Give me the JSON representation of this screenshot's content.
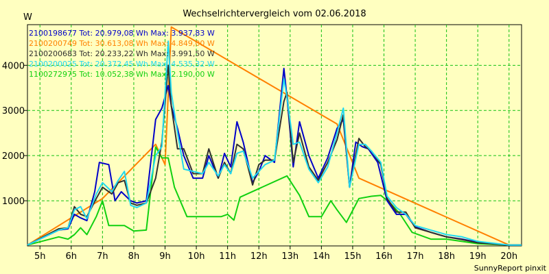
{
  "chart_data": {
    "type": "line",
    "title": "Wechselrichtervergleich vom 02.06.2018",
    "ylabel": "W",
    "xlabel": "",
    "ylim": [
      0,
      4900
    ],
    "xlim": [
      4.6,
      20.4
    ],
    "yticks": [
      1000,
      2000,
      3000,
      4000
    ],
    "xticks": [
      5,
      6,
      7,
      8,
      9,
      10,
      11,
      12,
      13,
      14,
      15,
      16,
      17,
      18,
      19,
      20
    ],
    "xtick_labels": [
      "5h",
      "6h",
      "7h",
      "8h",
      "9h",
      "10h",
      "11h",
      "12h",
      "13h",
      "14h",
      "15h",
      "16h",
      "17h",
      "18h",
      "19h",
      "20h"
    ],
    "grid": true,
    "legend_position": "top-left",
    "footer": "SunnyReport pinxit",
    "series": [
      {
        "name": "2100198677 Tot: 20.979,08 Wh Max: 3.937,83 W",
        "color": "#0000c8",
        "x": [
          4.6,
          5.6,
          5.9,
          6.1,
          6.3,
          6.5,
          6.75,
          6.9,
          7.2,
          7.4,
          7.6,
          7.9,
          8.1,
          8.4,
          8.7,
          8.9,
          9.1,
          9.2,
          9.4,
          9.6,
          9.9,
          10.2,
          10.4,
          10.7,
          10.9,
          11.1,
          11.3,
          11.5,
          11.8,
          12.0,
          12.2,
          12.5,
          12.8,
          12.9,
          13.1,
          13.3,
          13.6,
          13.9,
          14.2,
          14.5,
          14.7,
          14.9,
          15.1,
          15.3,
          15.5,
          15.8,
          16.1,
          16.4,
          16.7,
          17.0,
          17.5,
          18.0,
          18.5,
          19.0,
          20.0,
          20.4
        ],
        "y": [
          20,
          350,
          380,
          700,
          620,
          560,
          1200,
          1850,
          1800,
          1000,
          1200,
          1000,
          950,
          1000,
          2800,
          3050,
          3550,
          3100,
          2600,
          2000,
          1500,
          1500,
          2000,
          1500,
          2050,
          1750,
          2750,
          2300,
          1400,
          1650,
          2000,
          1850,
          3930,
          3300,
          1750,
          2750,
          2000,
          1500,
          1950,
          2600,
          2800,
          1300,
          2300,
          2200,
          2150,
          1850,
          1000,
          700,
          700,
          420,
          300,
          200,
          150,
          80,
          20,
          20
        ]
      },
      {
        "name": "2100200749 Tot: 30.613,08 Wh Max: 4.849,00 W",
        "color": "#ff8000",
        "x": [
          4.6,
          7.0,
          8.7,
          9.0,
          9.2,
          14.5,
          15.2,
          20.0,
          20.4
        ],
        "y": [
          20,
          1050,
          2250,
          1800,
          4849,
          2700,
          1500,
          20,
          20
        ]
      },
      {
        "name": "2100200683 Tot: 20.233,22 Wh Max: 3.991,50 W",
        "color": "#303030",
        "x": [
          4.6,
          5.6,
          5.9,
          6.1,
          6.3,
          6.5,
          6.8,
          7.0,
          7.3,
          7.5,
          7.7,
          7.9,
          8.1,
          8.4,
          8.7,
          8.9,
          9.1,
          9.2,
          9.4,
          9.6,
          9.9,
          10.2,
          10.4,
          10.7,
          10.9,
          11.1,
          11.3,
          11.5,
          11.8,
          12.0,
          12.2,
          12.5,
          12.8,
          12.9,
          13.1,
          13.3,
          13.6,
          13.9,
          14.2,
          14.5,
          14.7,
          14.9,
          15.2,
          15.4,
          15.6,
          15.9,
          16.1,
          16.4,
          16.7,
          17.0,
          17.5,
          18.0,
          18.5,
          19.0,
          20.0,
          20.4
        ],
        "y": [
          20,
          380,
          400,
          870,
          700,
          650,
          1050,
          1300,
          1150,
          1400,
          1450,
          950,
          900,
          950,
          1500,
          2300,
          4000,
          3100,
          2150,
          2150,
          1600,
          1600,
          2150,
          1500,
          1850,
          1600,
          2250,
          2150,
          1350,
          1800,
          1900,
          1900,
          3200,
          3400,
          1850,
          2500,
          1750,
          1450,
          1850,
          2350,
          2900,
          1300,
          2380,
          2200,
          2100,
          1800,
          1050,
          750,
          750,
          400,
          300,
          200,
          140,
          70,
          20,
          20
        ]
      },
      {
        "name": "2100200025 Tot: 20.372,45 Wh Max: 4.535,32 W",
        "color": "#20d8f0",
        "x": [
          4.6,
          5.6,
          5.9,
          6.1,
          6.3,
          6.5,
          6.8,
          7.0,
          7.3,
          7.5,
          7.7,
          7.9,
          8.1,
          8.4,
          8.7,
          8.9,
          9.1,
          9.2,
          9.4,
          9.6,
          9.9,
          10.2,
          10.4,
          10.7,
          10.9,
          11.1,
          11.3,
          11.5,
          11.8,
          12.0,
          12.2,
          12.5,
          12.8,
          12.9,
          13.1,
          13.3,
          13.6,
          13.9,
          14.2,
          14.5,
          14.7,
          14.9,
          15.2,
          15.4,
          15.6,
          15.9,
          16.1,
          16.4,
          16.7,
          17.0,
          17.5,
          18.0,
          18.5,
          19.0,
          20.0,
          20.4
        ],
        "y": [
          20,
          350,
          400,
          800,
          870,
          600,
          1150,
          1400,
          1200,
          1450,
          1650,
          900,
          850,
          950,
          2000,
          2200,
          4535,
          3400,
          2500,
          1700,
          1650,
          1600,
          1850,
          1550,
          1800,
          1600,
          2050,
          2100,
          1500,
          1650,
          1800,
          1900,
          3700,
          3300,
          2250,
          2300,
          1700,
          1400,
          1750,
          2500,
          3050,
          1300,
          2250,
          2250,
          2100,
          1850,
          1100,
          850,
          700,
          450,
          350,
          250,
          200,
          100,
          20,
          20
        ]
      },
      {
        "name": "1100272975 Tot: 10.052,38 Wh Max: 2.190,00 W",
        "color": "#10d010",
        "x": [
          4.6,
          5.6,
          5.9,
          6.1,
          6.3,
          6.5,
          6.8,
          7.0,
          7.2,
          7.7,
          8.0,
          8.4,
          8.7,
          8.9,
          9.1,
          9.3,
          9.7,
          10.4,
          10.8,
          11.0,
          11.2,
          11.4,
          12.9,
          13.3,
          13.6,
          14.0,
          14.3,
          14.5,
          14.8,
          15.2,
          15.6,
          15.9,
          16.2,
          16.5,
          16.9,
          17.5,
          18.0,
          19.0,
          20.0,
          20.4
        ],
        "y": [
          20,
          200,
          150,
          250,
          400,
          250,
          650,
          1000,
          450,
          450,
          330,
          350,
          2190,
          1950,
          1950,
          1300,
          650,
          650,
          650,
          700,
          570,
          1080,
          1550,
          1120,
          650,
          650,
          1000,
          800,
          520,
          1050,
          1100,
          1120,
          950,
          720,
          300,
          150,
          150,
          50,
          20,
          20
        ]
      }
    ]
  }
}
